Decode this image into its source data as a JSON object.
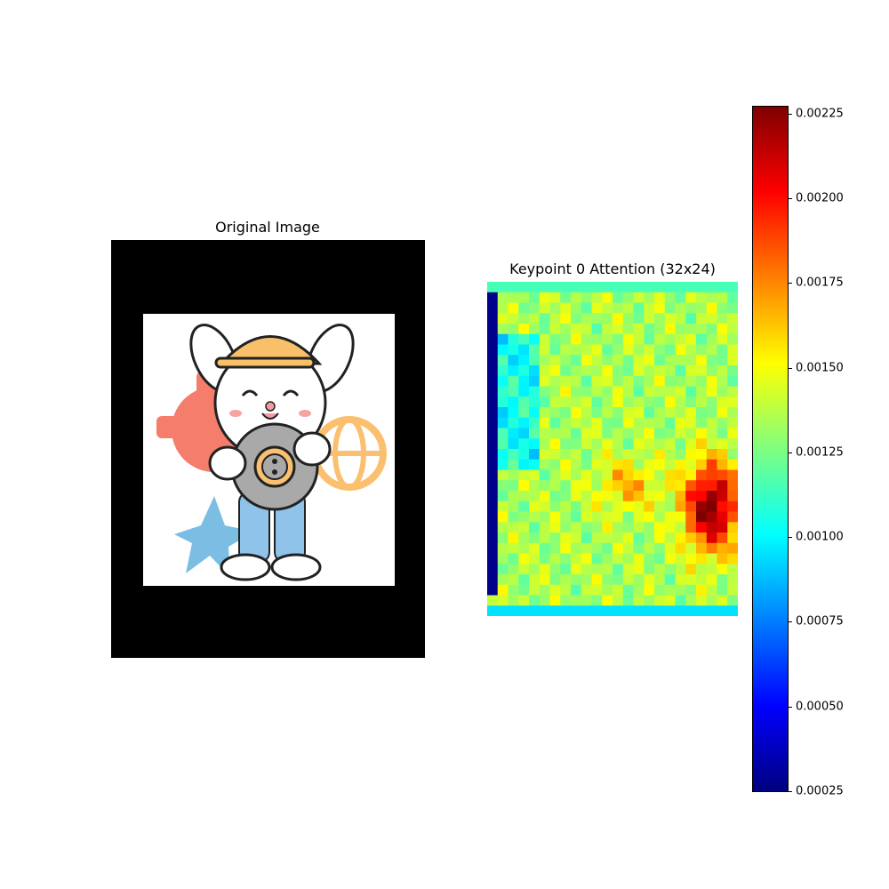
{
  "figure": {
    "left_title": "Original Image",
    "right_title": "Keypoint 0 Attention (32x24)"
  },
  "illustration": {
    "description_icon": "bunny-engineer-with-gear-icon",
    "colors": {
      "helmet": "#f9c06a",
      "gear_left": "#f47d6b",
      "gear_held": "#a9a9a9",
      "globe": "#fbc06f",
      "star": "#7bbde3",
      "pants": "#8fc3ea"
    }
  },
  "chart_data": {
    "type": "heatmap",
    "title": "Keypoint 0 Attention (32x24)",
    "rows": 32,
    "cols": 24,
    "colormap": "jet",
    "vmin": 0.00025,
    "vmax": 0.00227,
    "colorbar_ticks": [
      "0.00025",
      "0.00050",
      "0.00075",
      "0.00100",
      "0.00125",
      "0.00150",
      "0.00175",
      "0.00200",
      "0.00225"
    ],
    "colorbar_tick_values": [
      0.00025,
      0.0005,
      0.00075,
      0.001,
      0.00125,
      0.0015,
      0.00175,
      0.002,
      0.00225
    ],
    "peak_cell": {
      "row": 21,
      "col": 21,
      "value": 0.00225
    },
    "notes": "left column near vmin (dark blue) for rows 1-29; hot region centered near rows 18-25, cols 17-23"
  }
}
